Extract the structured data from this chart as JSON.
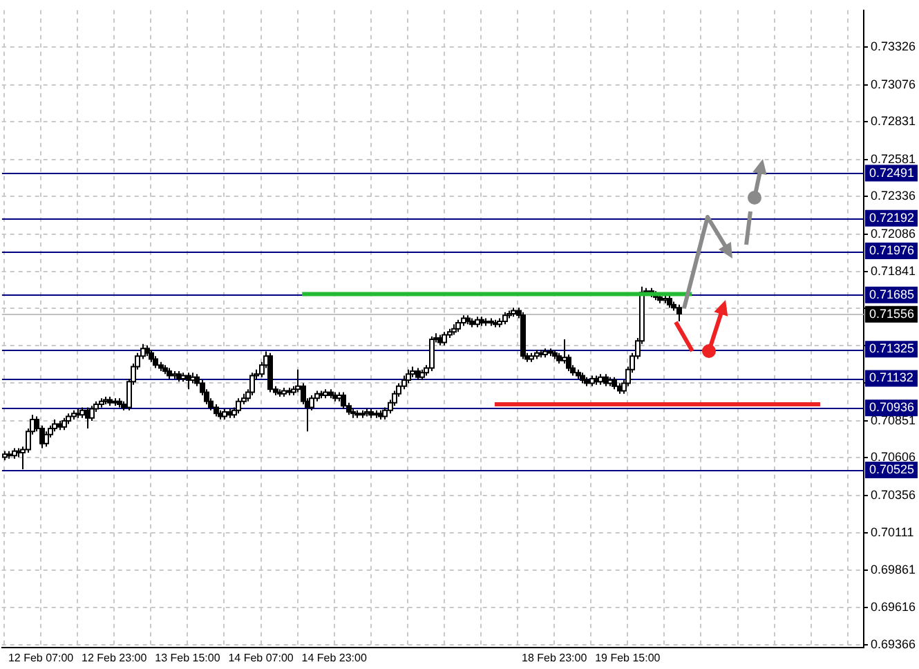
{
  "chart_data": {
    "type": "candlestick",
    "categories": [
      null,
      null,
      null,
      null,
      null,
      null,
      null,
      null,
      "12 Feb 07:00",
      null,
      null,
      null,
      null,
      null,
      null,
      null,
      null,
      null,
      null,
      null,
      null,
      null,
      null,
      null,
      "12 Feb 23:00",
      null,
      null,
      null,
      null,
      null,
      null,
      null,
      null,
      null,
      null,
      null,
      null,
      null,
      null,
      null,
      "13 Feb 15:00",
      null,
      null,
      null,
      null,
      null,
      null,
      null,
      null,
      null,
      null,
      null,
      null,
      null,
      null,
      null,
      "14 Feb 07:00",
      null,
      null,
      null,
      null,
      null,
      null,
      null,
      null,
      null,
      null,
      null,
      null,
      null,
      null,
      null,
      "14 Feb 23:00",
      null,
      null,
      null,
      null,
      null,
      null,
      null,
      null,
      null,
      null,
      null,
      null,
      null,
      null,
      null,
      null,
      null,
      null,
      null,
      null,
      null,
      null,
      null,
      null,
      null,
      null,
      null,
      null,
      null,
      null,
      null,
      null,
      null,
      null,
      null,
      null,
      null,
      null,
      null,
      null,
      null,
      null,
      null,
      null,
      null,
      null,
      null,
      "18 Feb 23:00",
      null,
      null,
      null,
      null,
      null,
      null,
      null,
      null,
      null,
      null,
      null,
      null,
      null,
      null,
      null,
      "19 Feb 15:00",
      null,
      null,
      null,
      null,
      null,
      null,
      null,
      null,
      null,
      null,
      null,
      null,
      null,
      null,
      null,
      null,
      null,
      null,
      null,
      null,
      null,
      null,
      null,
      null,
      null,
      null,
      null,
      null,
      null,
      null,
      null,
      null,
      null,
      null,
      null,
      null,
      null,
      null,
      null,
      null,
      null,
      null,
      null,
      null,
      null,
      null,
      null,
      null,
      null,
      null,
      null
    ],
    "ohlc": [
      [
        0.7061,
        0.7065,
        0.7059,
        0.7063
      ],
      [
        0.7063,
        0.7065,
        0.706,
        0.7062
      ],
      [
        0.7062,
        0.7067,
        0.706,
        0.7065
      ],
      [
        0.7065,
        0.7067,
        0.7061,
        0.7064
      ],
      [
        0.7064,
        0.7068,
        0.7053,
        0.7066
      ],
      [
        0.7066,
        0.708,
        0.7064,
        0.7078
      ],
      [
        0.7078,
        0.7089,
        0.7076,
        0.7086
      ],
      [
        0.7086,
        0.7088,
        0.7078,
        0.708
      ],
      [
        0.708,
        0.7082,
        0.7067,
        0.707
      ],
      [
        0.707,
        0.7078,
        0.7068,
        0.7076
      ],
      [
        0.7076,
        0.7082,
        0.7074,
        0.708
      ],
      [
        0.708,
        0.7086,
        0.7078,
        0.7083
      ],
      [
        0.7083,
        0.7085,
        0.7079,
        0.7081
      ],
      [
        0.7081,
        0.7087,
        0.7079,
        0.7085
      ],
      [
        0.7085,
        0.709,
        0.7083,
        0.7088
      ],
      [
        0.7088,
        0.7092,
        0.7086,
        0.709
      ],
      [
        0.709,
        0.7093,
        0.7087,
        0.7089
      ],
      [
        0.7089,
        0.7094,
        0.7087,
        0.7092
      ],
      [
        0.7092,
        0.7094,
        0.708,
        0.7087
      ],
      [
        0.7087,
        0.7095,
        0.7085,
        0.7093
      ],
      [
        0.7093,
        0.7098,
        0.7091,
        0.7096
      ],
      [
        0.7096,
        0.71,
        0.7094,
        0.7098
      ],
      [
        0.7098,
        0.7101,
        0.7096,
        0.7099
      ],
      [
        0.7099,
        0.7101,
        0.7095,
        0.7097
      ],
      [
        0.7097,
        0.71,
        0.7095,
        0.7098
      ],
      [
        0.7098,
        0.71,
        0.7094,
        0.7096
      ],
      [
        0.7096,
        0.7098,
        0.7092,
        0.7094
      ],
      [
        0.7094,
        0.7113,
        0.7092,
        0.7111
      ],
      [
        0.7111,
        0.7123,
        0.7109,
        0.7121
      ],
      [
        0.7121,
        0.713,
        0.7119,
        0.7128
      ],
      [
        0.7128,
        0.7136,
        0.7126,
        0.7133
      ],
      [
        0.7133,
        0.7135,
        0.7128,
        0.713
      ],
      [
        0.713,
        0.7132,
        0.7124,
        0.7126
      ],
      [
        0.7126,
        0.7128,
        0.712,
        0.7122
      ],
      [
        0.7122,
        0.7124,
        0.7118,
        0.712
      ],
      [
        0.712,
        0.7122,
        0.7116,
        0.7118
      ],
      [
        0.7118,
        0.712,
        0.7113,
        0.7115
      ],
      [
        0.7115,
        0.7118,
        0.7113,
        0.7116
      ],
      [
        0.7116,
        0.7118,
        0.7111,
        0.7113
      ],
      [
        0.7113,
        0.7117,
        0.7111,
        0.7115
      ],
      [
        0.7115,
        0.7117,
        0.7106,
        0.7112
      ],
      [
        0.7112,
        0.7117,
        0.711,
        0.7114
      ],
      [
        0.7114,
        0.7116,
        0.7108,
        0.711
      ],
      [
        0.711,
        0.7112,
        0.7102,
        0.7104
      ],
      [
        0.7104,
        0.7106,
        0.7096,
        0.7098
      ],
      [
        0.7098,
        0.71,
        0.7092,
        0.7094
      ],
      [
        0.7094,
        0.7096,
        0.7088,
        0.709
      ],
      [
        0.709,
        0.7092,
        0.7086,
        0.7088
      ],
      [
        0.7088,
        0.7093,
        0.7086,
        0.7091
      ],
      [
        0.7091,
        0.7093,
        0.7087,
        0.7089
      ],
      [
        0.7089,
        0.7094,
        0.7087,
        0.7092
      ],
      [
        0.7092,
        0.71,
        0.709,
        0.7098
      ],
      [
        0.7098,
        0.7103,
        0.7096,
        0.71
      ],
      [
        0.71,
        0.7106,
        0.7098,
        0.7104
      ],
      [
        0.7104,
        0.7117,
        0.7102,
        0.7115
      ],
      [
        0.7115,
        0.7119,
        0.7113,
        0.7116
      ],
      [
        0.7116,
        0.7124,
        0.7114,
        0.7122
      ],
      [
        0.7122,
        0.7131,
        0.712,
        0.7128
      ],
      [
        0.7128,
        0.713,
        0.7104,
        0.7106
      ],
      [
        0.7106,
        0.7108,
        0.7102,
        0.7104
      ],
      [
        0.7104,
        0.7106,
        0.7101,
        0.7103
      ],
      [
        0.7103,
        0.7107,
        0.7101,
        0.7105
      ],
      [
        0.7105,
        0.7107,
        0.7102,
        0.7104
      ],
      [
        0.7104,
        0.7108,
        0.7102,
        0.7106
      ],
      [
        0.7106,
        0.7119,
        0.7104,
        0.7108
      ],
      [
        0.7108,
        0.711,
        0.7096,
        0.7098
      ],
      [
        0.7098,
        0.71,
        0.7078,
        0.7094
      ],
      [
        0.7094,
        0.7102,
        0.7092,
        0.71
      ],
      [
        0.71,
        0.7105,
        0.7098,
        0.7103
      ],
      [
        0.7103,
        0.7105,
        0.71,
        0.7102
      ],
      [
        0.7102,
        0.7106,
        0.71,
        0.7104
      ],
      [
        0.7104,
        0.7106,
        0.71,
        0.7102
      ],
      [
        0.7102,
        0.7104,
        0.7098,
        0.71
      ],
      [
        0.71,
        0.7104,
        0.7098,
        0.7102
      ],
      [
        0.7102,
        0.7104,
        0.7093,
        0.7095
      ],
      [
        0.7095,
        0.7097,
        0.7089,
        0.7091
      ],
      [
        0.7091,
        0.7093,
        0.7087,
        0.709
      ],
      [
        0.709,
        0.7092,
        0.7087,
        0.7089
      ],
      [
        0.7089,
        0.7092,
        0.7087,
        0.709
      ],
      [
        0.709,
        0.7093,
        0.7088,
        0.7091
      ],
      [
        0.7091,
        0.7093,
        0.7087,
        0.7089
      ],
      [
        0.7089,
        0.7092,
        0.7087,
        0.709
      ],
      [
        0.709,
        0.7092,
        0.7086,
        0.7088
      ],
      [
        0.7088,
        0.7094,
        0.7086,
        0.7092
      ],
      [
        0.7092,
        0.7099,
        0.709,
        0.7097
      ],
      [
        0.7097,
        0.7105,
        0.7095,
        0.7103
      ],
      [
        0.7103,
        0.711,
        0.7101,
        0.7108
      ],
      [
        0.7108,
        0.7115,
        0.7106,
        0.7112
      ],
      [
        0.7112,
        0.7119,
        0.711,
        0.7116
      ],
      [
        0.7116,
        0.7121,
        0.7114,
        0.7118
      ],
      [
        0.7118,
        0.712,
        0.7112,
        0.7114
      ],
      [
        0.7114,
        0.7119,
        0.7112,
        0.7117
      ],
      [
        0.7117,
        0.7122,
        0.7115,
        0.712
      ],
      [
        0.712,
        0.7141,
        0.7118,
        0.7139
      ],
      [
        0.7139,
        0.7143,
        0.7137,
        0.714
      ],
      [
        0.714,
        0.7142,
        0.7135,
        0.7137
      ],
      [
        0.7137,
        0.7144,
        0.7135,
        0.7142
      ],
      [
        0.7142,
        0.7146,
        0.714,
        0.7144
      ],
      [
        0.7144,
        0.7149,
        0.7142,
        0.7146
      ],
      [
        0.7146,
        0.7152,
        0.7144,
        0.715
      ],
      [
        0.715,
        0.7155,
        0.7148,
        0.7153
      ],
      [
        0.7153,
        0.7155,
        0.7149,
        0.7151
      ],
      [
        0.7151,
        0.7153,
        0.7147,
        0.7149
      ],
      [
        0.7149,
        0.7154,
        0.7147,
        0.7152
      ],
      [
        0.7152,
        0.7154,
        0.7148,
        0.715
      ],
      [
        0.715,
        0.7153,
        0.7148,
        0.7151
      ],
      [
        0.7151,
        0.7153,
        0.7148,
        0.715
      ],
      [
        0.715,
        0.7152,
        0.7147,
        0.7149
      ],
      [
        0.7149,
        0.7153,
        0.7147,
        0.7151
      ],
      [
        0.7151,
        0.7157,
        0.7149,
        0.7155
      ],
      [
        0.7155,
        0.7158,
        0.7153,
        0.7156
      ],
      [
        0.7156,
        0.716,
        0.7154,
        0.7158
      ],
      [
        0.7158,
        0.716,
        0.7153,
        0.7155
      ],
      [
        0.7155,
        0.7157,
        0.7126,
        0.7128
      ],
      [
        0.7128,
        0.713,
        0.7124,
        0.7126
      ],
      [
        0.7126,
        0.713,
        0.7124,
        0.7128
      ],
      [
        0.7128,
        0.7132,
        0.7126,
        0.713
      ],
      [
        0.713,
        0.7132,
        0.7127,
        0.7129
      ],
      [
        0.7129,
        0.7133,
        0.7127,
        0.7131
      ],
      [
        0.7131,
        0.7133,
        0.7128,
        0.713
      ],
      [
        0.713,
        0.7132,
        0.7126,
        0.7128
      ],
      [
        0.7128,
        0.713,
        0.7123,
        0.7125
      ],
      [
        0.7125,
        0.7139,
        0.7123,
        0.7127
      ],
      [
        0.7127,
        0.7129,
        0.7118,
        0.712
      ],
      [
        0.712,
        0.7122,
        0.7115,
        0.7117
      ],
      [
        0.7117,
        0.7119,
        0.7113,
        0.7115
      ],
      [
        0.7115,
        0.7117,
        0.711,
        0.7112
      ],
      [
        0.7112,
        0.7114,
        0.7108,
        0.711
      ],
      [
        0.711,
        0.7115,
        0.7108,
        0.7113
      ],
      [
        0.7113,
        0.7115,
        0.7109,
        0.7111
      ],
      [
        0.7111,
        0.7116,
        0.7109,
        0.7114
      ],
      [
        0.7114,
        0.7116,
        0.7108,
        0.711
      ],
      [
        0.711,
        0.7114,
        0.7108,
        0.7112
      ],
      [
        0.7112,
        0.7114,
        0.7106,
        0.7108
      ],
      [
        0.7108,
        0.711,
        0.7103,
        0.7105
      ],
      [
        0.7105,
        0.7112,
        0.7103,
        0.711
      ],
      [
        0.711,
        0.7121,
        0.7108,
        0.7119
      ],
      [
        0.7119,
        0.713,
        0.7117,
        0.7128
      ],
      [
        0.7128,
        0.714,
        0.7126,
        0.7138
      ],
      [
        0.7138,
        0.7174,
        0.7136,
        0.717
      ],
      [
        0.717,
        0.7173,
        0.7168,
        0.7171
      ],
      [
        0.7171,
        0.7173,
        0.7167,
        0.7169
      ],
      [
        0.7169,
        0.7171,
        0.7165,
        0.7167
      ],
      [
        0.7167,
        0.7169,
        0.7163,
        0.7165
      ],
      [
        0.7165,
        0.7168,
        0.7163,
        0.7166
      ],
      [
        0.7166,
        0.7168,
        0.716,
        0.7162
      ],
      [
        0.7162,
        0.7164,
        0.7158,
        0.716
      ],
      [
        0.716,
        0.7162,
        0.7151,
        0.7156
      ],
      null,
      null,
      null,
      null,
      null,
      null,
      null,
      null,
      null,
      null,
      null,
      null,
      null,
      null,
      null,
      null,
      null,
      null,
      null,
      null,
      null,
      null,
      null,
      null,
      null,
      null,
      null,
      null,
      null,
      null,
      null,
      null,
      null,
      null,
      null,
      null,
      null,
      null,
      null,
      null
    ],
    "series": [
      {
        "type": "line",
        "color": "#22bb33",
        "values": [
          null,
          null,
          null,
          null,
          null,
          null,
          null,
          null,
          null,
          null,
          null,
          null,
          null,
          null,
          null,
          null,
          null,
          null,
          null,
          null,
          null,
          null,
          null,
          null,
          null,
          null,
          null,
          null,
          null,
          null,
          null,
          null,
          null,
          null,
          null,
          null,
          null,
          null,
          null,
          null,
          null,
          null,
          null,
          null,
          null,
          null,
          null,
          null,
          null,
          null,
          null,
          null,
          null,
          null,
          null,
          null,
          null,
          null,
          null,
          null,
          null,
          null,
          null,
          null,
          null,
          0.7169,
          null,
          null,
          null,
          null,
          null,
          null,
          null,
          null,
          null,
          null,
          null,
          null,
          null,
          null,
          null,
          null,
          null,
          null,
          null,
          null,
          null,
          null,
          null,
          null,
          null,
          null,
          null,
          null,
          null,
          null,
          null,
          null,
          null,
          null,
          null,
          null,
          null,
          null,
          null,
          null,
          null,
          null,
          null,
          null,
          null,
          null,
          null,
          null,
          null,
          null,
          null,
          null,
          null,
          null,
          null,
          null,
          null,
          null,
          null,
          null,
          null,
          null,
          null,
          null,
          null,
          null,
          null,
          null,
          null,
          null,
          null,
          null,
          null,
          null,
          null,
          null,
          null,
          null,
          null,
          null,
          null,
          null,
          null,
          null,
          0.7169,
          null,
          null,
          null,
          null,
          null,
          null,
          null,
          null,
          null,
          null,
          null,
          null,
          null,
          null,
          null,
          null,
          null,
          null,
          null,
          null,
          null,
          null,
          null,
          null,
          null,
          null,
          null,
          null,
          null,
          null,
          null,
          null,
          null,
          null,
          null,
          null,
          null
        ]
      },
      {
        "type": "line",
        "color": "#ee2222",
        "values": [
          null,
          null,
          null,
          null,
          null,
          null,
          null,
          null,
          null,
          null,
          null,
          null,
          null,
          null,
          null,
          null,
          null,
          null,
          null,
          null,
          null,
          null,
          null,
          null,
          null,
          null,
          null,
          null,
          null,
          null,
          null,
          null,
          null,
          null,
          null,
          null,
          null,
          null,
          null,
          null,
          null,
          null,
          null,
          null,
          null,
          null,
          null,
          null,
          null,
          null,
          null,
          null,
          null,
          null,
          null,
          null,
          null,
          null,
          null,
          null,
          null,
          null,
          null,
          null,
          null,
          null,
          null,
          null,
          null,
          null,
          null,
          null,
          null,
          null,
          null,
          null,
          null,
          null,
          null,
          null,
          null,
          null,
          null,
          null,
          null,
          null,
          null,
          null,
          null,
          null,
          null,
          null,
          null,
          null,
          null,
          null,
          null,
          null,
          null,
          null,
          null,
          null,
          null,
          null,
          null,
          null,
          null,
          0.7096,
          null,
          null,
          null,
          null,
          null,
          null,
          null,
          null,
          null,
          null,
          null,
          null,
          null,
          null,
          null,
          null,
          null,
          null,
          null,
          null,
          null,
          null,
          null,
          null,
          null,
          null,
          null,
          null,
          null,
          null,
          null,
          null,
          null,
          null,
          null,
          null,
          null,
          null,
          null,
          null,
          null,
          null,
          null,
          null,
          null,
          null,
          null,
          null,
          null,
          null,
          null,
          null,
          null,
          null,
          null,
          null,
          null,
          null,
          null,
          null,
          null,
          null,
          null,
          null,
          null,
          null,
          null,
          null,
          null,
          null,
          0.7096,
          null,
          null,
          null,
          null,
          null,
          null,
          null,
          null,
          null
        ]
      }
    ],
    "ylim": [
      0.6935,
      0.7357
    ],
    "yticks": [
      0.73326,
      0.73076,
      0.72831,
      0.72581,
      0.72336,
      0.72086,
      0.71841,
      {
        "value": 0.71596,
        "label": null
      },
      {
        "value": 0.71351,
        "label": null
      },
      {
        "value": 0.71101,
        "label": null
      },
      0.70851,
      0.70606,
      0.70356,
      0.70111,
      0.69861,
      0.69616,
      0.69366
    ],
    "grid": true,
    "ref_lines": [
      {
        "axis": "y",
        "value": 0.72491,
        "label": "0.72491",
        "color": "#000080"
      },
      {
        "axis": "y",
        "value": 0.72192,
        "label": "0.72192",
        "color": "#000080"
      },
      {
        "axis": "y",
        "value": 0.71976,
        "label": "0.71976",
        "color": "#000080"
      },
      {
        "axis": "y",
        "value": 0.71685,
        "label": "0.71685",
        "color": "#000080"
      },
      {
        "axis": "y",
        "value": 0.71556,
        "label": "0.71556",
        "color": "#c0c0c0"
      },
      {
        "axis": "y",
        "value": 0.71325,
        "label": "0.71325",
        "color": "#000080"
      },
      {
        "axis": "y",
        "value": 0.71132,
        "label": "0.71132",
        "color": "#000080"
      },
      {
        "axis": "y",
        "value": 0.70936,
        "label": "0.70936",
        "color": "#000080"
      },
      {
        "axis": "y",
        "value": 0.70525,
        "label": "0.70525",
        "color": "#000080"
      }
    ]
  }
}
